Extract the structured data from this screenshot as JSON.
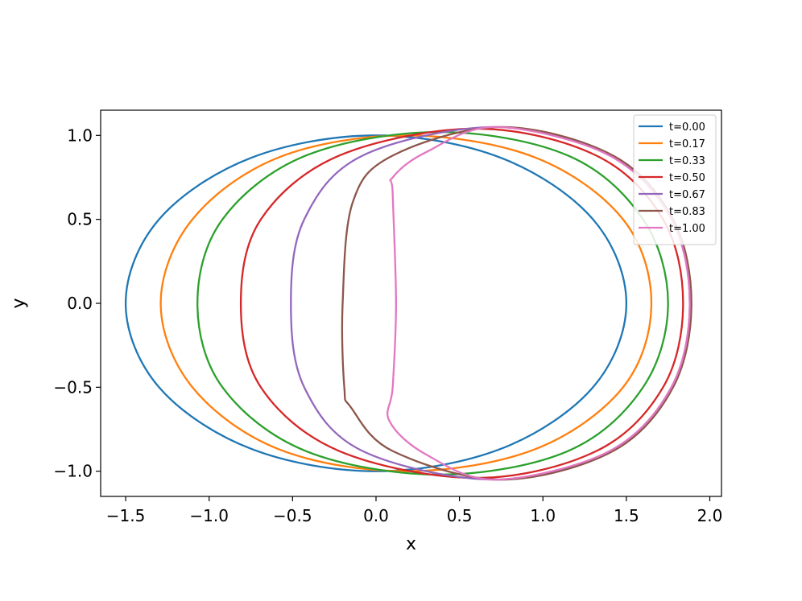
{
  "chart_data": {
    "type": "line",
    "title": "",
    "xlabel": "x",
    "ylabel": "y",
    "xlim": [
      -1.65,
      2.07
    ],
    "ylim": [
      -1.15,
      1.15
    ],
    "xticks": [
      -1.5,
      -1.0,
      -0.5,
      0.0,
      0.5,
      1.0,
      1.5,
      2.0
    ],
    "xtick_labels": [
      "−1.5",
      "−1.0",
      "−0.5",
      "0.0",
      "0.5",
      "1.0",
      "1.5",
      "2.0"
    ],
    "yticks": [
      -1.0,
      -0.5,
      0.0,
      0.5,
      1.0
    ],
    "ytick_labels": [
      "−1.0",
      "−0.5",
      "0.0",
      "0.5",
      "1.0"
    ],
    "grid": false,
    "legend_position": "top-right",
    "series": [
      {
        "name": "t=0.00",
        "color": "#1f77b4",
        "x": [
          1.5,
          1.3,
          0.75,
          0.0,
          -0.75,
          -1.3,
          -1.5,
          -1.3,
          -0.75,
          0.0,
          0.75,
          1.3,
          1.5
        ],
        "y": [
          0.0,
          0.5,
          0.866,
          1.0,
          0.866,
          0.5,
          0.0,
          -0.5,
          -0.866,
          -1.0,
          -0.866,
          -0.5,
          0.0
        ]
      },
      {
        "name": "t=0.17",
        "color": "#ff7f0e",
        "x": [
          1.65,
          1.48,
          0.95,
          0.18,
          -0.58,
          -1.1,
          -1.29,
          -1.1,
          -0.58,
          0.18,
          0.95,
          1.48,
          1.65
        ],
        "y": [
          0.0,
          0.5,
          0.87,
          1.0,
          0.87,
          0.5,
          0.0,
          -0.5,
          -0.87,
          -1.0,
          -0.87,
          -0.5,
          0.0
        ]
      },
      {
        "name": "t=0.33",
        "color": "#2ca02c",
        "x": [
          1.75,
          1.6,
          1.15,
          0.38,
          -0.42,
          -0.92,
          -1.07,
          -0.92,
          -0.42,
          0.38,
          1.15,
          1.6,
          1.75
        ],
        "y": [
          0.0,
          0.5,
          0.88,
          1.02,
          0.88,
          0.5,
          0.0,
          -0.5,
          -0.88,
          -1.02,
          -0.88,
          -0.5,
          0.0
        ]
      },
      {
        "name": "t=0.50",
        "color": "#d62728",
        "x": [
          1.84,
          1.72,
          1.32,
          0.6,
          -0.22,
          -0.69,
          -0.81,
          -0.69,
          -0.22,
          0.6,
          1.32,
          1.72,
          1.84
        ],
        "y": [
          0.0,
          0.5,
          0.88,
          1.04,
          0.88,
          0.5,
          0.0,
          -0.5,
          -0.88,
          -1.04,
          -0.88,
          -0.5,
          0.0
        ]
      },
      {
        "name": "t=0.67",
        "color": "#9467bd",
        "x": [
          1.88,
          1.77,
          1.4,
          0.72,
          -0.08,
          -0.43,
          -0.51,
          -0.43,
          -0.08,
          0.72,
          1.4,
          1.77,
          1.88
        ],
        "y": [
          0.0,
          0.5,
          0.88,
          1.05,
          0.88,
          0.5,
          0.0,
          -0.5,
          -0.88,
          -1.05,
          -0.88,
          -0.5,
          0.0
        ]
      },
      {
        "name": "t=0.83",
        "color": "#8c564b",
        "x": [
          1.89,
          1.78,
          1.42,
          0.75,
          0.1,
          -0.14,
          -0.2,
          -0.19,
          -0.15,
          0.1,
          0.75,
          1.42,
          1.78,
          1.89
        ],
        "y": [
          0.0,
          0.5,
          0.88,
          1.05,
          0.88,
          0.6,
          0.0,
          -0.5,
          -0.62,
          -0.88,
          -1.05,
          -0.88,
          -0.5,
          0.0
        ]
      },
      {
        "name": "t=1.00",
        "color": "#e377c2",
        "x": [
          1.88,
          1.77,
          1.4,
          0.72,
          0.3,
          0.1,
          0.1,
          0.12,
          0.1,
          0.08,
          0.3,
          0.72,
          1.4,
          1.77,
          1.88
        ],
        "y": [
          0.0,
          0.5,
          0.88,
          1.05,
          0.9,
          0.75,
          0.65,
          0.0,
          -0.5,
          -0.7,
          -0.9,
          -1.05,
          -0.88,
          -0.5,
          0.0
        ]
      }
    ]
  }
}
